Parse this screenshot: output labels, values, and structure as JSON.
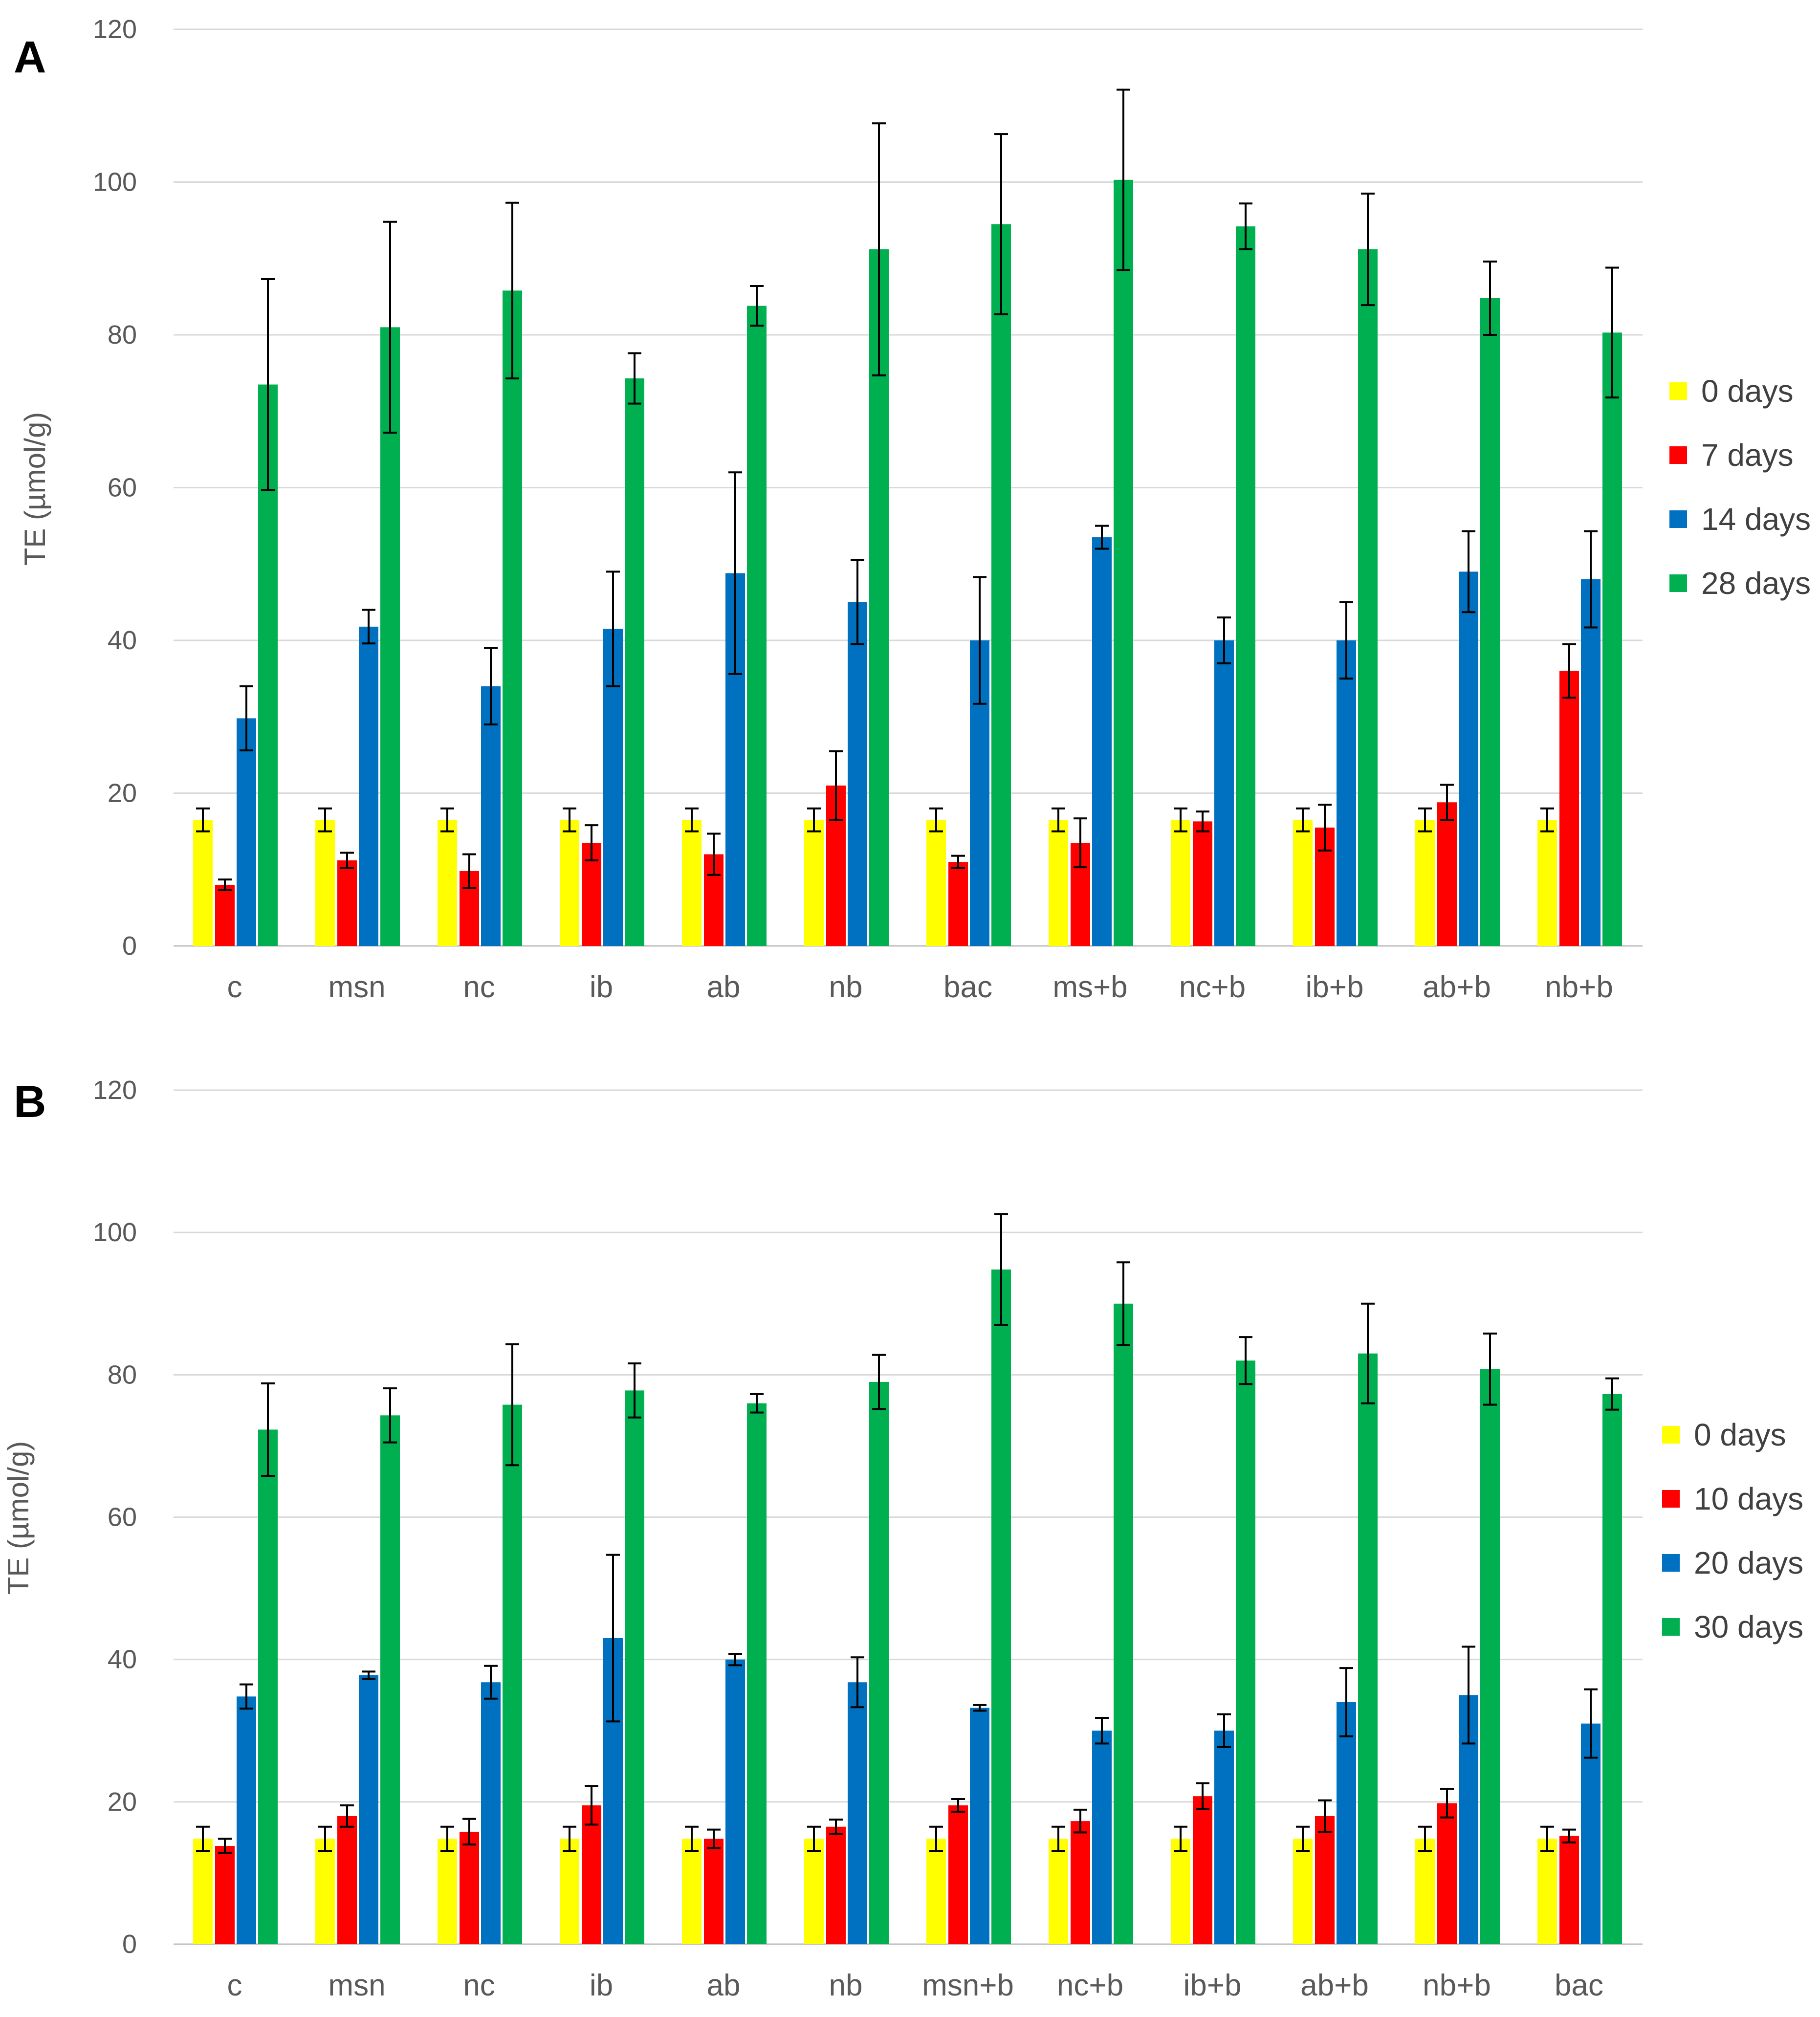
{
  "chart_data": [
    {
      "panel": "A",
      "type": "bar",
      "ylabel": "TE (µmol/g)",
      "ylim": [
        0,
        120
      ],
      "yticks": [
        0,
        20,
        40,
        60,
        80,
        100,
        120
      ],
      "grid": true,
      "legend": "right",
      "categories": [
        "c",
        "msn",
        "nc",
        "ib",
        "ab",
        "nb",
        "bac",
        "ms+b",
        "nc+b",
        "ib+b",
        "ab+b",
        "nb+b"
      ],
      "series": [
        {
          "name": "0 days",
          "color": "#ffff00",
          "values": [
            16.5,
            16.5,
            16.5,
            16.5,
            16.5,
            16.5,
            16.5,
            16.5,
            16.5,
            16.5,
            16.5,
            16.5
          ],
          "errors": [
            1.5,
            1.5,
            1.5,
            1.5,
            1.5,
            1.5,
            1.5,
            1.5,
            1.5,
            1.5,
            1.5,
            1.5
          ]
        },
        {
          "name": "7 days",
          "color": "#ff0000",
          "values": [
            8,
            11.2,
            9.8,
            13.5,
            12,
            21,
            11,
            13.5,
            16.3,
            15.5,
            18.8,
            36
          ],
          "errors": [
            0.7,
            1,
            2.2,
            2.3,
            2.7,
            4.5,
            0.8,
            3.2,
            1.3,
            3,
            2.3,
            3.5
          ]
        },
        {
          "name": "14 days",
          "color": "#0070c0",
          "values": [
            29.8,
            41.8,
            34,
            41.5,
            48.8,
            45,
            40,
            53.5,
            40,
            40,
            49,
            48
          ],
          "errors": [
            4.2,
            2.2,
            5,
            7.5,
            13.2,
            5.5,
            8.3,
            1.5,
            3,
            5,
            5.3,
            6.3
          ]
        },
        {
          "name": "28 days",
          "color": "#00b050",
          "values": [
            73.5,
            81,
            85.8,
            74.3,
            83.8,
            91.2,
            94.5,
            100.3,
            94.2,
            91.2,
            84.8,
            80.3
          ],
          "errors": [
            13.8,
            13.8,
            11.5,
            3.3,
            2.6,
            16.5,
            11.8,
            11.8,
            3,
            7.3,
            4.8,
            8.5
          ]
        }
      ]
    },
    {
      "panel": "B",
      "type": "bar",
      "ylabel": "TE (µmol/g)",
      "ylim": [
        0,
        120
      ],
      "yticks": [
        0,
        20,
        40,
        60,
        80,
        100,
        120
      ],
      "grid": true,
      "legend": "right",
      "categories": [
        "c",
        "msn",
        "nc",
        "ib",
        "ab",
        "nb",
        "msn+b",
        "nc+b",
        "ib+b",
        "ab+b",
        "nb+b",
        "bac"
      ],
      "series": [
        {
          "name": "0 days",
          "color": "#ffff00",
          "values": [
            14.8,
            14.8,
            14.8,
            14.8,
            14.8,
            14.8,
            14.8,
            14.8,
            14.8,
            14.8,
            14.8,
            14.8
          ],
          "errors": [
            1.7,
            1.7,
            1.7,
            1.7,
            1.7,
            1.7,
            1.7,
            1.7,
            1.7,
            1.7,
            1.7,
            1.7
          ]
        },
        {
          "name": "10 days",
          "color": "#ff0000",
          "values": [
            13.8,
            18,
            15.8,
            19.5,
            14.8,
            16.5,
            19.5,
            17.3,
            20.8,
            18,
            19.8,
            15.2
          ],
          "errors": [
            1,
            1.5,
            1.8,
            2.7,
            1.3,
            1,
            0.9,
            1.6,
            1.8,
            2.2,
            2,
            0.9
          ]
        },
        {
          "name": "20 days",
          "color": "#0070c0",
          "values": [
            34.8,
            37.8,
            36.8,
            43,
            40,
            36.8,
            33.2,
            30,
            30,
            34,
            35,
            31
          ],
          "errors": [
            1.7,
            0.5,
            2.3,
            11.7,
            0.8,
            3.5,
            0.4,
            1.8,
            2.3,
            4.8,
            6.8,
            4.8
          ]
        },
        {
          "name": "30 days",
          "color": "#00b050",
          "values": [
            72.3,
            74.3,
            75.8,
            77.8,
            76,
            79,
            94.8,
            90,
            82,
            83,
            80.8,
            77.3
          ],
          "errors": [
            6.5,
            3.8,
            8.5,
            3.8,
            1.3,
            3.8,
            7.8,
            5.8,
            3.3,
            7,
            5,
            2.2
          ]
        }
      ]
    }
  ]
}
